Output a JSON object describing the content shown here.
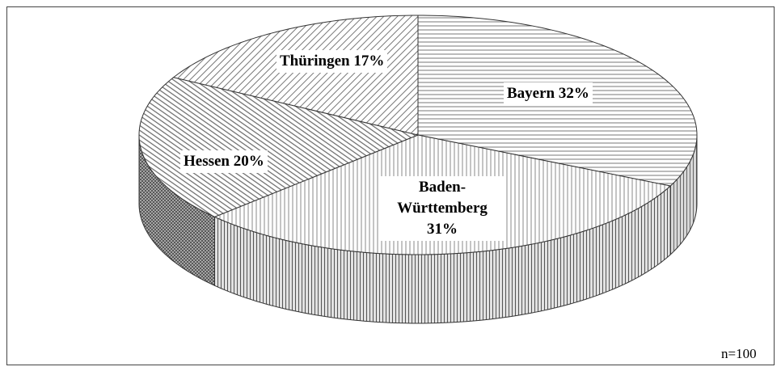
{
  "chart_data": {
    "type": "pie",
    "values": [
      32,
      31,
      20,
      17
    ],
    "value_labels": [
      "Bayern 32%",
      "Baden-Württemberg 31%",
      "Hessen 20%",
      "Thüringen 17%"
    ],
    "annotation": "n=100"
  }
}
